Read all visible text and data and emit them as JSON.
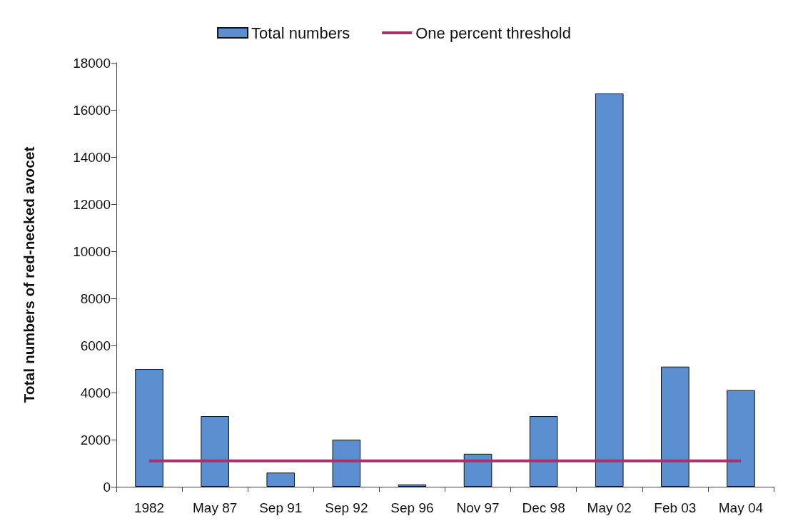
{
  "chart_data": {
    "type": "bar",
    "ylabel": "Total numbers of red-necked avocet",
    "categories": [
      "1982",
      "May 87",
      "Sep 91",
      "Sep 92",
      "Sep 96",
      "Nov 97",
      "Dec 98",
      "May 02",
      "Feb 03",
      "May 04"
    ],
    "series": [
      {
        "name": "Total numbers",
        "color": "#5b8fcf",
        "values": [
          5000,
          3000,
          600,
          2000,
          100,
          1400,
          3000,
          16700,
          5100,
          4100
        ]
      },
      {
        "name": "One percent threshold",
        "type": "line",
        "color": "#a3336b",
        "values": [
          1100,
          1100,
          1100,
          1100,
          1100,
          1100,
          1100,
          1100,
          1100,
          1100
        ]
      }
    ],
    "ylim": [
      0,
      18000
    ],
    "yticks": [
      0,
      2000,
      4000,
      6000,
      8000,
      10000,
      12000,
      14000,
      16000,
      18000
    ],
    "grid": false,
    "legend": "top",
    "marker": "none",
    "line_style": "solid"
  }
}
